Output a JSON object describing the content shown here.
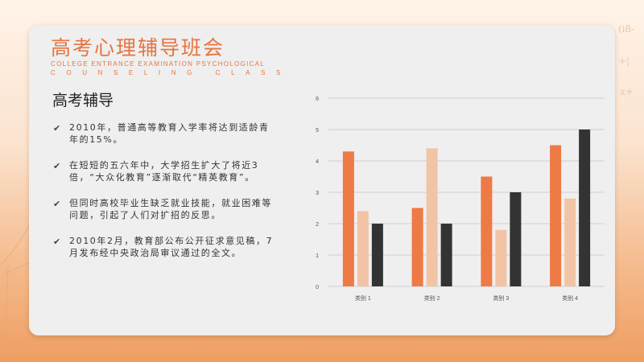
{
  "slide": {
    "title": "高考心理辅导班会",
    "subtitle_line1": "COLLEGE ENTRANCE EXAMINATION PSYCHOLOGICAL",
    "subtitle_line2": "COUNSELING CLASS",
    "section_heading": "高考辅导",
    "bullets": [
      "2010年，普通高等教育入学率将达到适龄青年的15%。",
      "在短短的五六年中，大学招生扩大了将近3倍，“大众化教育”逐渐取代“精英教育”。",
      "但同时高校毕业生缺乏就业技能，就业困难等问题，引起了人们对扩招的反思。",
      "2010年2月，教育部公布公开征求意见稿，7月发布经中央政治局审议通过的全文。"
    ]
  },
  "colors": {
    "accent": "#e8743e",
    "series1": "#ee7a45",
    "series2": "#f2c4a6",
    "series3": "#333333"
  },
  "chart_data": {
    "type": "bar",
    "categories": [
      "类别 1",
      "类别 2",
      "类别 3",
      "类别 4"
    ],
    "series": [
      {
        "values": [
          4.3,
          2.5,
          3.5,
          4.5
        ]
      },
      {
        "values": [
          2.4,
          4.4,
          1.8,
          2.8
        ]
      },
      {
        "values": [
          2.0,
          2.0,
          3.0,
          5.0
        ]
      }
    ],
    "ylim": [
      0,
      6
    ],
    "yticks": [
      "0",
      "1",
      "2",
      "3",
      "4",
      "5",
      "6"
    ],
    "grid": true,
    "title": "",
    "xlabel": "",
    "ylabel": ""
  }
}
